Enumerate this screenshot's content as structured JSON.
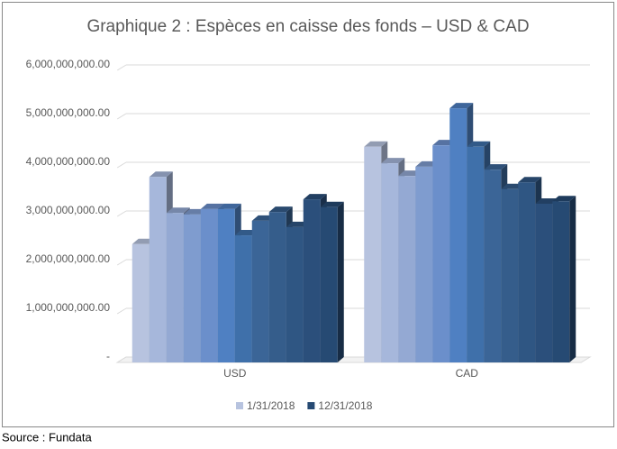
{
  "chart_data": {
    "type": "bar3d",
    "title": "Graphique 2 : Espèces en caisse des fonds – USD & CAD",
    "source": "Source : Fundata",
    "categories": [
      "USD",
      "CAD"
    ],
    "ylim": [
      0,
      6000000000
    ],
    "yticks": [
      {
        "value": 0,
        "label": "-"
      },
      {
        "value": 1000000000,
        "label": "1,000,000,000.00"
      },
      {
        "value": 2000000000,
        "label": "2,000,000,000.00"
      },
      {
        "value": 3000000000,
        "label": "3,000,000,000.00"
      },
      {
        "value": 4000000000,
        "label": "4,000,000,000.00"
      },
      {
        "value": 5000000000,
        "label": "5,000,000,000.00"
      },
      {
        "value": 6000000000,
        "label": "6,000,000,000.00"
      }
    ],
    "grid": true,
    "legend": "bottom",
    "series": [
      {
        "name": "1/31/2018",
        "color": "#b7c3df",
        "values": [
          2430000000,
          4430000000
        ]
      },
      {
        "color": "#a6b7db",
        "values": [
          3810000000,
          4090000000
        ]
      },
      {
        "color": "#94a9d3",
        "values": [
          3070000000,
          3830000000
        ]
      },
      {
        "color": "#7f9ccf",
        "values": [
          3040000000,
          4020000000
        ]
      },
      {
        "color": "#6b8fcb",
        "values": [
          3150000000,
          4460000000
        ]
      },
      {
        "color": "#4f80c2",
        "values": [
          3150000000,
          5220000000
        ]
      },
      {
        "color": "#3f70aa",
        "values": [
          2610000000,
          4430000000
        ]
      },
      {
        "color": "#3b6597",
        "values": [
          2910000000,
          3960000000
        ]
      },
      {
        "color": "#355d8b",
        "values": [
          3090000000,
          3560000000
        ]
      },
      {
        "color": "#2f5683",
        "values": [
          2780000000,
          3700000000
        ]
      },
      {
        "color": "#2b4f7b",
        "values": [
          3350000000,
          3260000000
        ]
      },
      {
        "name": "12/31/2018",
        "color": "#264a73",
        "values": [
          3190000000,
          3310000000
        ]
      }
    ]
  }
}
